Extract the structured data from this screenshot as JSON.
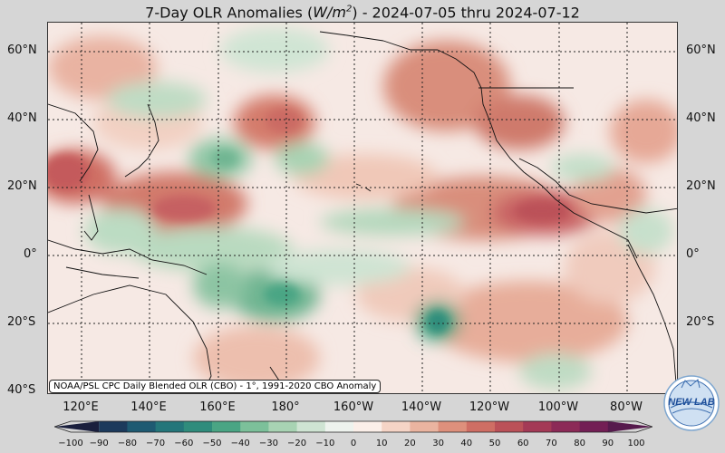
{
  "title_prefix": "7-Day OLR Anomalies (",
  "title_unit_base": "W/m",
  "title_unit_exp": "2",
  "title_suffix": ") - 2024-07-05 thru 2024-07-12",
  "source_caption": "NOAA/PSL CPC Daily Blended OLR (CBO) - 1°, 1991-2020 CBO Anomaly",
  "logo_text": "NEW LAB",
  "map": {
    "lat_labels": [
      "60°N",
      "40°N",
      "20°N",
      "0°",
      "20°S",
      "40°S"
    ],
    "lon_labels": [
      "120°E",
      "140°E",
      "160°E",
      "180°",
      "160°W",
      "140°W",
      "120°W",
      "100°W",
      "80°W"
    ]
  },
  "colorbar": {
    "ticks": [
      "−100",
      "−90",
      "−80",
      "−70",
      "−60",
      "−50",
      "−40",
      "−30",
      "−20",
      "−10",
      "0",
      "10",
      "20",
      "30",
      "40",
      "50",
      "60",
      "70",
      "80",
      "90",
      "100"
    ],
    "colors": [
      "#1a1f3d",
      "#1c3a5c",
      "#1e5a72",
      "#24767a",
      "#2f8c7c",
      "#4aa584",
      "#7cc09a",
      "#a8d3b3",
      "#cfe4d3",
      "#eef3ee",
      "#fbefe9",
      "#f5d4c6",
      "#eab4a0",
      "#de907c",
      "#cf6e64",
      "#bb5158",
      "#a43a56",
      "#8c2a57",
      "#731f55",
      "#561a4d"
    ]
  }
}
